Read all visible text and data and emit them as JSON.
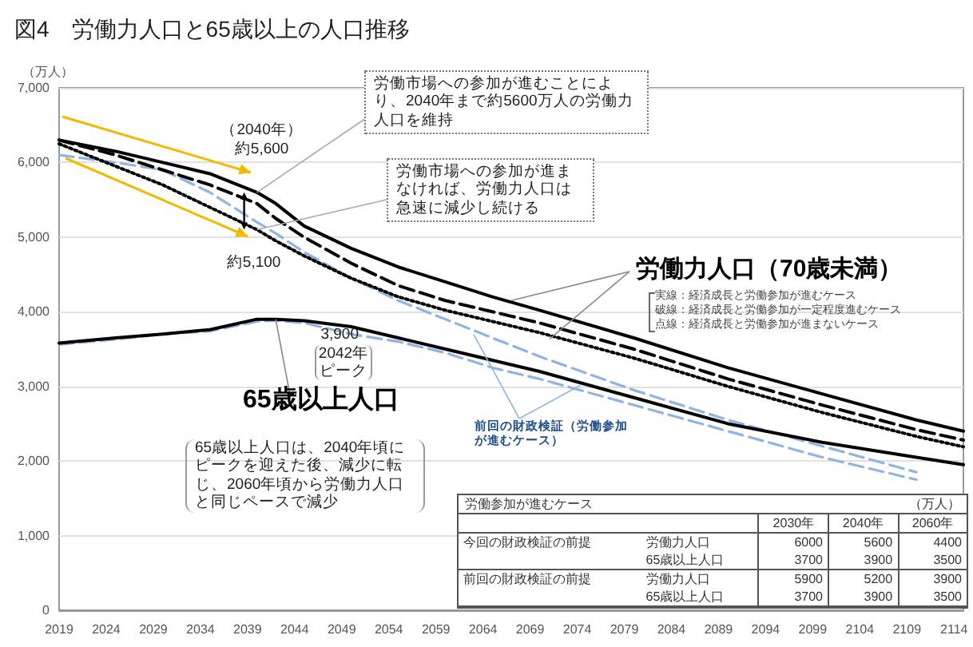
{
  "chart_data": {
    "type": "line",
    "title": "図4　労働力人口と65歳以上の人口推移",
    "ylabel": "（万人）",
    "x": [
      2019,
      2025,
      2030,
      2035,
      2040,
      2042,
      2045,
      2050,
      2055,
      2060,
      2065,
      2070,
      2080,
      2090,
      2100,
      2110,
      2115
    ],
    "xlim": [
      2019,
      2115
    ],
    "xticks": [
      2019,
      2024,
      2029,
      2034,
      2039,
      2044,
      2049,
      2054,
      2059,
      2064,
      2069,
      2074,
      2079,
      2084,
      2089,
      2094,
      2099,
      2104,
      2109,
      2114
    ],
    "ylim": [
      0,
      7000
    ],
    "yticks": [
      {
        "value": 0,
        "label": "0"
      },
      {
        "value": 1000,
        "label": "1,000"
      },
      {
        "value": 2000,
        "label": "2,000"
      },
      {
        "value": 3000,
        "label": "3,000"
      },
      {
        "value": 4000,
        "label": "4,000"
      },
      {
        "value": 5000,
        "label": "5,000"
      },
      {
        "value": 6000,
        "label": "6,000"
      },
      {
        "value": 7000,
        "label": "7,000"
      }
    ],
    "grid": "y",
    "legend": false,
    "marker": "none",
    "series": [
      {
        "color": "#000000",
        "line_style": "solid",
        "values": [
          6300,
          6150,
          6000,
          5850,
          5600,
          5450,
          5150,
          4850,
          4600,
          4400,
          4200,
          4020,
          3650,
          3250,
          2900,
          2550,
          2400
        ]
      },
      {
        "color": "#000000",
        "line_style": "dashed",
        "values": [
          6300,
          6100,
          5900,
          5700,
          5450,
          5250,
          5000,
          4650,
          4350,
          4150,
          4000,
          3850,
          3500,
          3100,
          2750,
          2420,
          2280
        ]
      },
      {
        "color": "#000000",
        "line_style": "dotted",
        "values": [
          6250,
          5950,
          5700,
          5400,
          5100,
          4950,
          4750,
          4450,
          4200,
          4020,
          3870,
          3720,
          3380,
          3000,
          2650,
          2330,
          2190
        ]
      },
      {
        "color": "#8eb4e3",
        "line_style": "dashed",
        "values": [
          6100,
          6000,
          5900,
          5600,
          5200,
          5050,
          4800,
          4450,
          4150,
          3900,
          3650,
          3400,
          2950,
          2550,
          2200,
          1850,
          null
        ]
      },
      {
        "color": "#8eb4e3",
        "line_style": "dashed",
        "values": [
          3560,
          3630,
          3700,
          3740,
          3870,
          3880,
          3850,
          3700,
          3600,
          3450,
          3250,
          3100,
          2750,
          2400,
          2050,
          1750,
          null
        ]
      },
      {
        "color": "#000000",
        "line_style": "solid",
        "values": [
          3580,
          3650,
          3700,
          3760,
          3900,
          3900,
          3880,
          3800,
          3650,
          3500,
          3350,
          3200,
          2850,
          2500,
          2250,
          2050,
          1950
        ]
      }
    ],
    "annotations": [
      {
        "text": "労働市場への参加が進むことにより、2040年まで約5600万人の労働力人口を維持",
        "x": 2040,
        "y": 5600
      },
      {
        "text": "労働市場への参加が進まなければ、労働力人口は急速に減少し続ける",
        "x": 2040,
        "y": 5100
      },
      {
        "text": "（2040年）約5,600",
        "x": 2040,
        "y": 5600
      },
      {
        "text": "約5,100",
        "x": 2040,
        "y": 5100
      },
      {
        "text": "労働力人口（70歳未満）",
        "x": 2067,
        "y": 4150
      },
      "実線：経済成長と労働参加が進むケース",
      "破線：経済成長と労働参加が一定程度進むケース",
      "点線：経済成長と労働参加が進まないケース",
      {
        "text": "3,900",
        "x": 2042,
        "y": 3900
      },
      "2042年ピーク",
      {
        "text": "65歳以上人口",
        "x": 2042,
        "y": 3900
      },
      "65歳以上人口は、2040年頃にピークを迎えた後、減少に転じ、2060年頃から労働力人口と同じペースで減少",
      {
        "text": "前回の財政検証（労働参加が進むケース）",
        "x": 2063,
        "y": 3700
      },
      "労働参加が進むケース",
      "（万人）",
      "2030年",
      "2040年",
      "2060年",
      "今回の財政検証の前提",
      "労働力人口",
      "6000",
      "5600",
      "4400",
      "65歳以上人口",
      "3700",
      "3900",
      "3500",
      "前回の財政検証の前提",
      "労働力人口",
      "5900",
      "5200",
      "3900",
      "65歳以上人口",
      "3700",
      "3900",
      "3500"
    ]
  }
}
